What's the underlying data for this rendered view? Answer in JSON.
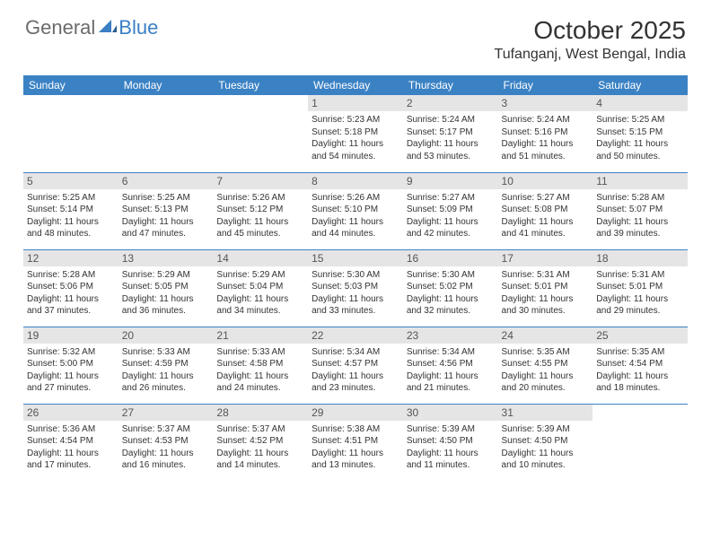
{
  "logo": {
    "text1": "General",
    "text2": "Blue"
  },
  "title": "October 2025",
  "location": "Tufanganj, West Bengal, India",
  "colors": {
    "header_bg": "#3b82c4",
    "header_text": "#ffffff",
    "daynum_bg": "#e5e5e5",
    "border": "#3b82c4",
    "logo_gray": "#6b6b6b",
    "logo_blue": "#3b7fc4"
  },
  "day_headers": [
    "Sunday",
    "Monday",
    "Tuesday",
    "Wednesday",
    "Thursday",
    "Friday",
    "Saturday"
  ],
  "weeks": [
    [
      null,
      null,
      null,
      {
        "n": "1",
        "sr": "5:23 AM",
        "ss": "5:18 PM",
        "dl": "11 hours and 54 minutes."
      },
      {
        "n": "2",
        "sr": "5:24 AM",
        "ss": "5:17 PM",
        "dl": "11 hours and 53 minutes."
      },
      {
        "n": "3",
        "sr": "5:24 AM",
        "ss": "5:16 PM",
        "dl": "11 hours and 51 minutes."
      },
      {
        "n": "4",
        "sr": "5:25 AM",
        "ss": "5:15 PM",
        "dl": "11 hours and 50 minutes."
      }
    ],
    [
      {
        "n": "5",
        "sr": "5:25 AM",
        "ss": "5:14 PM",
        "dl": "11 hours and 48 minutes."
      },
      {
        "n": "6",
        "sr": "5:25 AM",
        "ss": "5:13 PM",
        "dl": "11 hours and 47 minutes."
      },
      {
        "n": "7",
        "sr": "5:26 AM",
        "ss": "5:12 PM",
        "dl": "11 hours and 45 minutes."
      },
      {
        "n": "8",
        "sr": "5:26 AM",
        "ss": "5:10 PM",
        "dl": "11 hours and 44 minutes."
      },
      {
        "n": "9",
        "sr": "5:27 AM",
        "ss": "5:09 PM",
        "dl": "11 hours and 42 minutes."
      },
      {
        "n": "10",
        "sr": "5:27 AM",
        "ss": "5:08 PM",
        "dl": "11 hours and 41 minutes."
      },
      {
        "n": "11",
        "sr": "5:28 AM",
        "ss": "5:07 PM",
        "dl": "11 hours and 39 minutes."
      }
    ],
    [
      {
        "n": "12",
        "sr": "5:28 AM",
        "ss": "5:06 PM",
        "dl": "11 hours and 37 minutes."
      },
      {
        "n": "13",
        "sr": "5:29 AM",
        "ss": "5:05 PM",
        "dl": "11 hours and 36 minutes."
      },
      {
        "n": "14",
        "sr": "5:29 AM",
        "ss": "5:04 PM",
        "dl": "11 hours and 34 minutes."
      },
      {
        "n": "15",
        "sr": "5:30 AM",
        "ss": "5:03 PM",
        "dl": "11 hours and 33 minutes."
      },
      {
        "n": "16",
        "sr": "5:30 AM",
        "ss": "5:02 PM",
        "dl": "11 hours and 32 minutes."
      },
      {
        "n": "17",
        "sr": "5:31 AM",
        "ss": "5:01 PM",
        "dl": "11 hours and 30 minutes."
      },
      {
        "n": "18",
        "sr": "5:31 AM",
        "ss": "5:01 PM",
        "dl": "11 hours and 29 minutes."
      }
    ],
    [
      {
        "n": "19",
        "sr": "5:32 AM",
        "ss": "5:00 PM",
        "dl": "11 hours and 27 minutes."
      },
      {
        "n": "20",
        "sr": "5:33 AM",
        "ss": "4:59 PM",
        "dl": "11 hours and 26 minutes."
      },
      {
        "n": "21",
        "sr": "5:33 AM",
        "ss": "4:58 PM",
        "dl": "11 hours and 24 minutes."
      },
      {
        "n": "22",
        "sr": "5:34 AM",
        "ss": "4:57 PM",
        "dl": "11 hours and 23 minutes."
      },
      {
        "n": "23",
        "sr": "5:34 AM",
        "ss": "4:56 PM",
        "dl": "11 hours and 21 minutes."
      },
      {
        "n": "24",
        "sr": "5:35 AM",
        "ss": "4:55 PM",
        "dl": "11 hours and 20 minutes."
      },
      {
        "n": "25",
        "sr": "5:35 AM",
        "ss": "4:54 PM",
        "dl": "11 hours and 18 minutes."
      }
    ],
    [
      {
        "n": "26",
        "sr": "5:36 AM",
        "ss": "4:54 PM",
        "dl": "11 hours and 17 minutes."
      },
      {
        "n": "27",
        "sr": "5:37 AM",
        "ss": "4:53 PM",
        "dl": "11 hours and 16 minutes."
      },
      {
        "n": "28",
        "sr": "5:37 AM",
        "ss": "4:52 PM",
        "dl": "11 hours and 14 minutes."
      },
      {
        "n": "29",
        "sr": "5:38 AM",
        "ss": "4:51 PM",
        "dl": "11 hours and 13 minutes."
      },
      {
        "n": "30",
        "sr": "5:39 AM",
        "ss": "4:50 PM",
        "dl": "11 hours and 11 minutes."
      },
      {
        "n": "31",
        "sr": "5:39 AM",
        "ss": "4:50 PM",
        "dl": "11 hours and 10 minutes."
      },
      null
    ]
  ],
  "labels": {
    "sunrise": "Sunrise:",
    "sunset": "Sunset:",
    "daylight": "Daylight:"
  }
}
